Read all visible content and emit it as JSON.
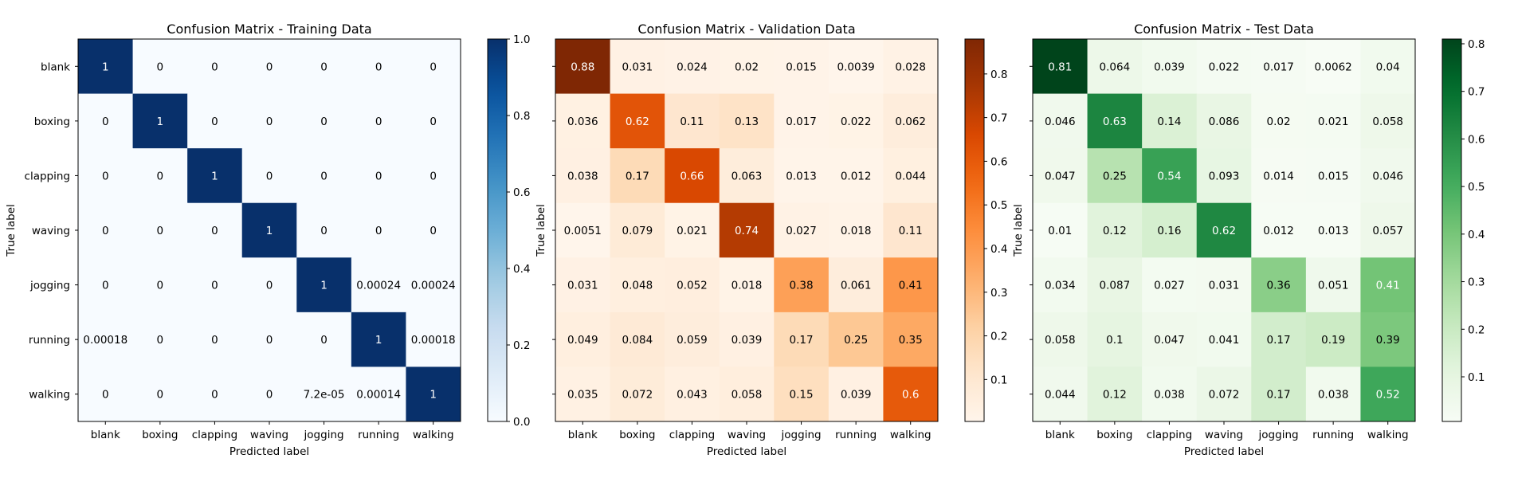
{
  "chart_data": [
    {
      "type": "heatmap",
      "id": "training",
      "title": "Confusion Matrix - Training Data",
      "xlabel": "Predicted label",
      "ylabel": "True label",
      "categories": [
        "blank",
        "boxing",
        "clapping",
        "waving",
        "jogging",
        "running",
        "walking"
      ],
      "cells": [
        [
          "1",
          "0",
          "0",
          "0",
          "0",
          "0",
          "0"
        ],
        [
          "0",
          "1",
          "0",
          "0",
          "0",
          "0",
          "0"
        ],
        [
          "0",
          "0",
          "1",
          "0",
          "0",
          "0",
          "0"
        ],
        [
          "0",
          "0",
          "0",
          "1",
          "0",
          "0",
          "0"
        ],
        [
          "0",
          "0",
          "0",
          "0",
          "1",
          "0.00024",
          "0.00024"
        ],
        [
          "0.00018",
          "0",
          "0",
          "0",
          "0",
          "1",
          "0.00018"
        ],
        [
          "0",
          "0",
          "0",
          "0",
          "7.2e-05",
          "0.00014",
          "1"
        ]
      ],
      "colormap": "Blues",
      "colorbar": {
        "min": 0.0,
        "max": 1.0,
        "ticks": [
          "0.0",
          "0.2",
          "0.4",
          "0.6",
          "0.8",
          "1.0"
        ]
      }
    },
    {
      "type": "heatmap",
      "id": "validation",
      "title": "Confusion Matrix - Validation Data",
      "xlabel": "Predicted label",
      "ylabel": "True label",
      "categories": [
        "blank",
        "boxing",
        "clapping",
        "waving",
        "jogging",
        "running",
        "walking"
      ],
      "cells": [
        [
          "0.88",
          "0.031",
          "0.024",
          "0.02",
          "0.015",
          "0.0039",
          "0.028"
        ],
        [
          "0.036",
          "0.62",
          "0.11",
          "0.13",
          "0.017",
          "0.022",
          "0.062"
        ],
        [
          "0.038",
          "0.17",
          "0.66",
          "0.063",
          "0.013",
          "0.012",
          "0.044"
        ],
        [
          "0.0051",
          "0.079",
          "0.021",
          "0.74",
          "0.027",
          "0.018",
          "0.11"
        ],
        [
          "0.031",
          "0.048",
          "0.052",
          "0.018",
          "0.38",
          "0.061",
          "0.41"
        ],
        [
          "0.049",
          "0.084",
          "0.059",
          "0.039",
          "0.17",
          "0.25",
          "0.35"
        ],
        [
          "0.035",
          "0.072",
          "0.043",
          "0.058",
          "0.15",
          "0.039",
          "0.6"
        ]
      ],
      "colormap": "Oranges",
      "colorbar": {
        "min": 0.0039,
        "max": 0.88,
        "ticks": [
          "0.1",
          "0.2",
          "0.3",
          "0.4",
          "0.5",
          "0.6",
          "0.7",
          "0.8"
        ]
      }
    },
    {
      "type": "heatmap",
      "id": "test",
      "title": "Confusion Matrix - Test Data",
      "xlabel": "Predicted label",
      "ylabel": "True label",
      "categories": [
        "blank",
        "boxing",
        "clapping",
        "waving",
        "jogging",
        "running",
        "walking"
      ],
      "cells": [
        [
          "0.81",
          "0.064",
          "0.039",
          "0.022",
          "0.017",
          "0.0062",
          "0.04"
        ],
        [
          "0.046",
          "0.63",
          "0.14",
          "0.086",
          "0.02",
          "0.021",
          "0.058"
        ],
        [
          "0.047",
          "0.25",
          "0.54",
          "0.093",
          "0.014",
          "0.015",
          "0.046"
        ],
        [
          "0.01",
          "0.12",
          "0.16",
          "0.62",
          "0.012",
          "0.013",
          "0.057"
        ],
        [
          "0.034",
          "0.087",
          "0.027",
          "0.031",
          "0.36",
          "0.051",
          "0.41"
        ],
        [
          "0.058",
          "0.1",
          "0.047",
          "0.041",
          "0.17",
          "0.19",
          "0.39"
        ],
        [
          "0.044",
          "0.12",
          "0.038",
          "0.072",
          "0.17",
          "0.038",
          "0.52"
        ]
      ],
      "colormap": "Greens",
      "colorbar": {
        "min": 0.0062,
        "max": 0.81,
        "ticks": [
          "0.1",
          "0.2",
          "0.3",
          "0.4",
          "0.5",
          "0.6",
          "0.7",
          "0.8"
        ]
      }
    }
  ],
  "colors": {
    "Blues": [
      "#f7fbff",
      "#deebf7",
      "#c6dbef",
      "#9ecae1",
      "#6baed6",
      "#4292c6",
      "#2171b5",
      "#08519c",
      "#08306b"
    ],
    "Oranges": [
      "#fff5eb",
      "#fee6ce",
      "#fdd0a2",
      "#fdae6b",
      "#fd8d3c",
      "#f16913",
      "#d94801",
      "#a63603",
      "#7f2704"
    ],
    "Greens": [
      "#f7fcf5",
      "#e5f5e0",
      "#c7e9c0",
      "#a1d99b",
      "#74c476",
      "#41ab5d",
      "#238b45",
      "#006d2c",
      "#00441b"
    ]
  }
}
